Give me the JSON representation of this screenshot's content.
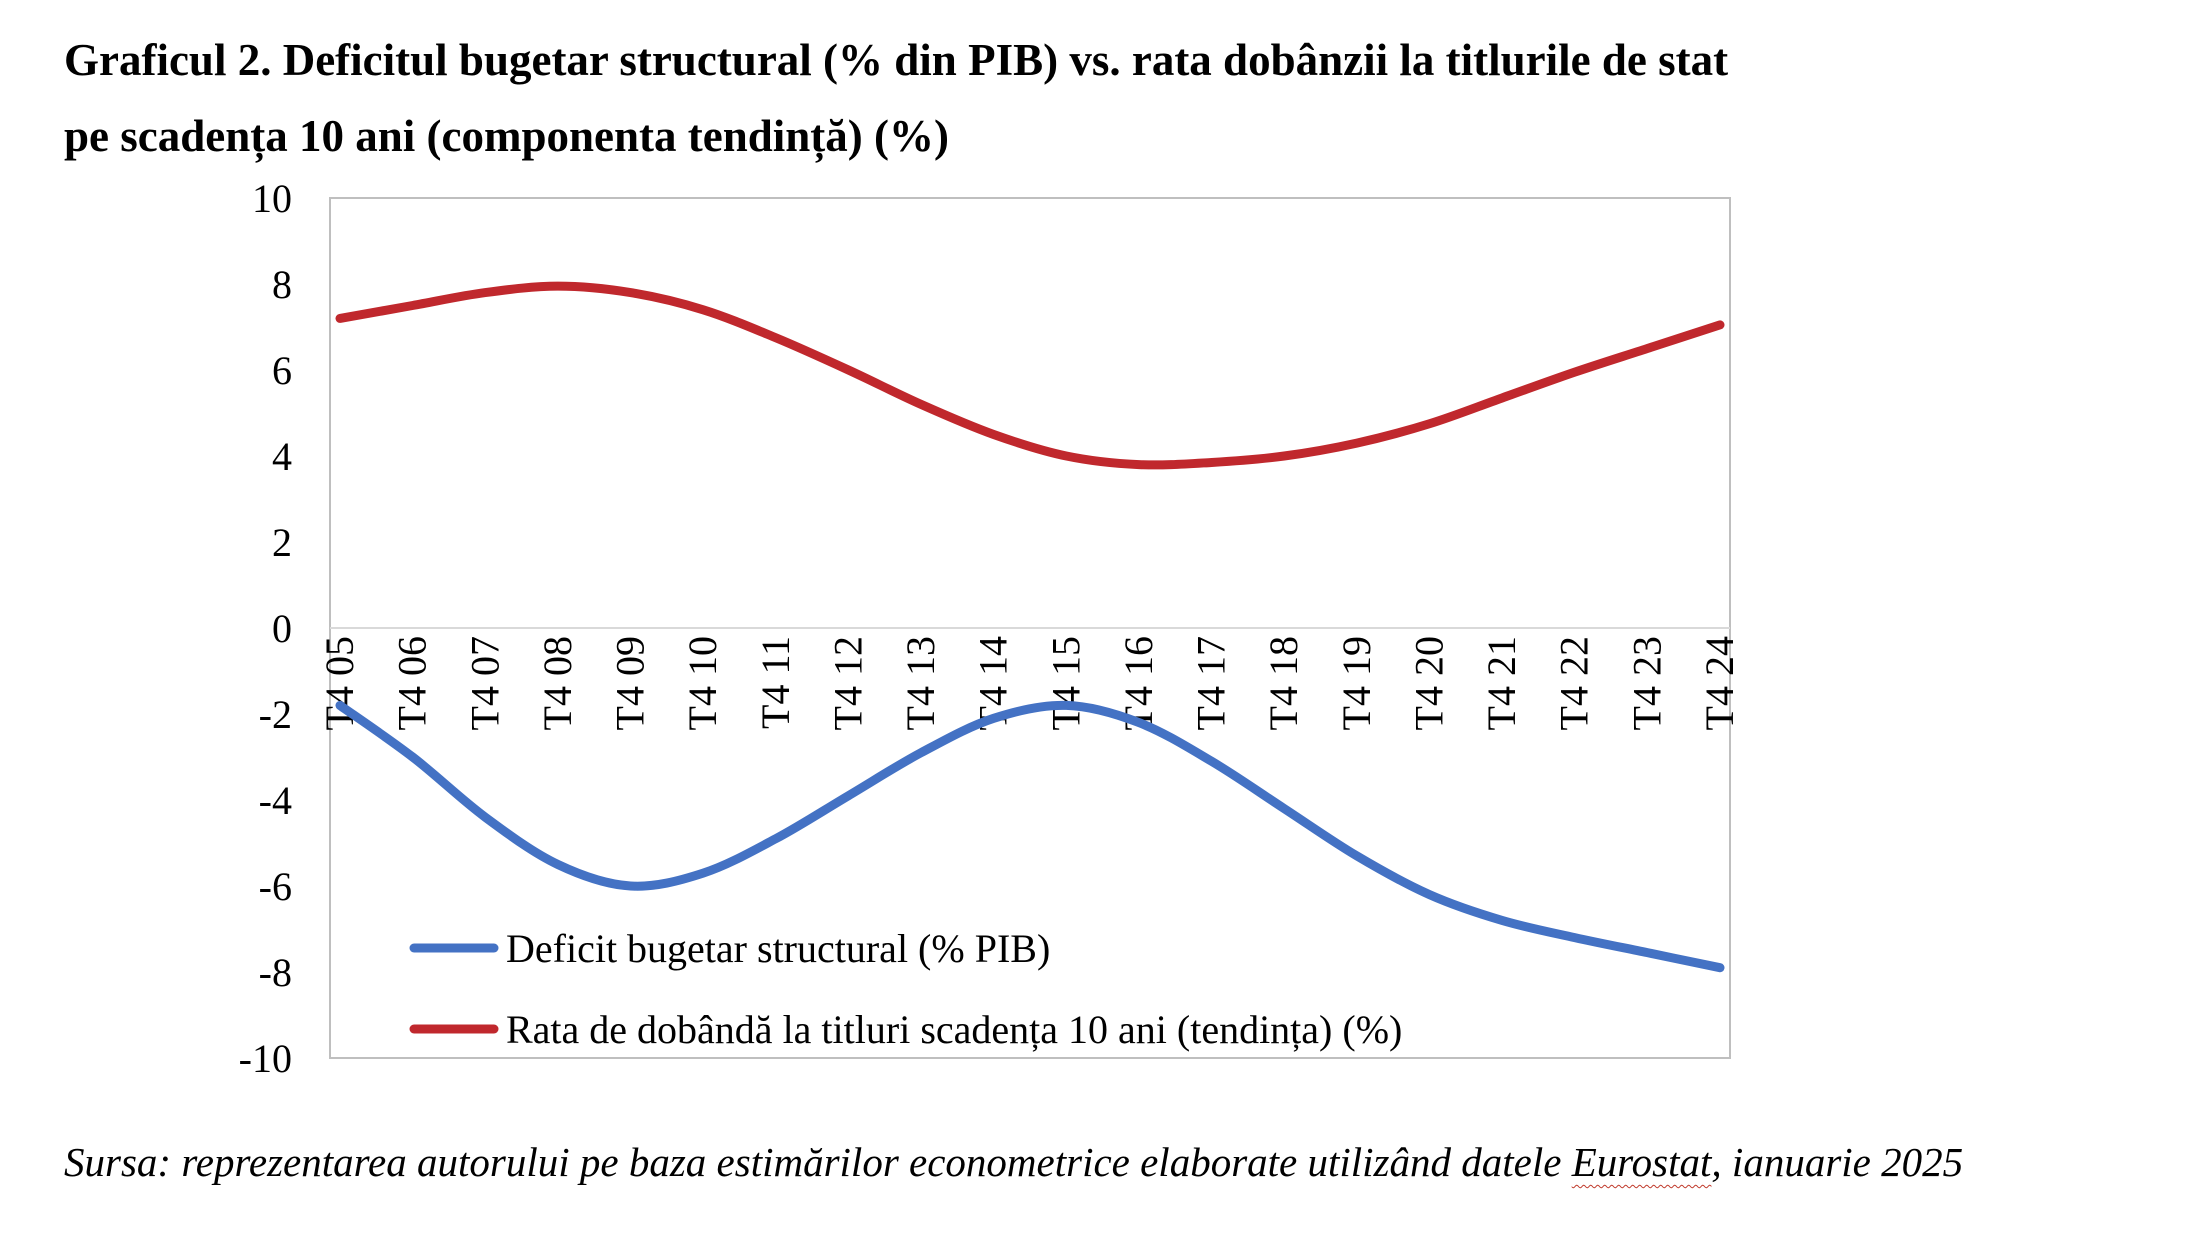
{
  "title_line1": "Graficul 2. Deficitul bugetar structural (% din PIB) vs. rata dobânzii la titlurile de stat",
  "title_line2": "pe scadența 10 ani (componenta tendință) (%)",
  "source": {
    "prefix": "Sursa: reprezentarea autorului pe baza estimărilor econometrice elaborate utilizând datele ",
    "eurostat": "Eurostat",
    "suffix": ", ianuarie 2025"
  },
  "chart_data": {
    "type": "line",
    "categories": [
      "T4 05",
      "T4 06",
      "T4 07",
      "T4 08",
      "T4 09",
      "T4 10",
      "T4 11",
      "T4 12",
      "T4 13",
      "T4 14",
      "T4 15",
      "T4 16",
      "T4 17",
      "T4 18",
      "T4 19",
      "T4 20",
      "T4 21",
      "T4 22",
      "T4 23",
      "T4 24"
    ],
    "ylim": [
      -10,
      10
    ],
    "yticks": [
      "10",
      "8",
      "6",
      "4",
      "2",
      "0",
      "-2",
      "-4",
      "-6",
      "-8",
      "-10"
    ],
    "series": [
      {
        "name": "Deficit bugetar structural (% PIB)",
        "color": "#4472c4",
        "values": [
          -1.8,
          -3.0,
          -4.4,
          -5.5,
          -6.0,
          -5.7,
          -4.9,
          -3.9,
          -2.9,
          -2.1,
          -1.8,
          -2.2,
          -3.1,
          -4.2,
          -5.3,
          -6.2,
          -6.8,
          -7.2,
          -7.55,
          -7.9
        ]
      },
      {
        "name": "Rata de dobândă la titluri scadența 10 ani (tendința) (%)",
        "color": "#c0282d",
        "values": [
          7.2,
          7.5,
          7.8,
          7.95,
          7.8,
          7.4,
          6.75,
          6.0,
          5.2,
          4.5,
          4.0,
          3.8,
          3.85,
          4.0,
          4.3,
          4.75,
          5.35,
          5.95,
          6.5,
          7.05
        ]
      }
    ],
    "grid": false,
    "legend_position": "bottom-left inside plot area"
  }
}
